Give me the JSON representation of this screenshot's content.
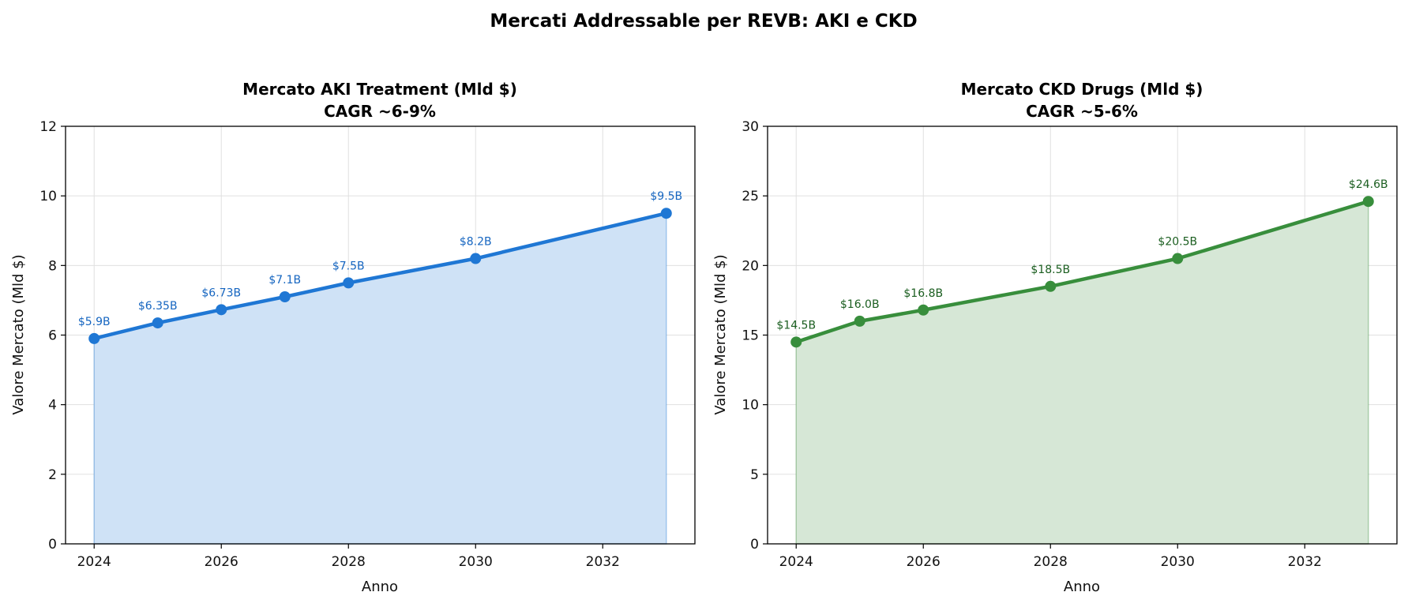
{
  "figure_title": "Mercati Addressable per REVB: AKI e CKD",
  "chart_data": [
    {
      "type": "area",
      "title": "Mercato AKI Treatment (Mld $)",
      "subtitle": "CAGR ~6-9%",
      "xlabel": "Anno",
      "ylabel": "Valore Mercato (Mld $)",
      "xlim": [
        2023.55,
        2033.45
      ],
      "ylim": [
        0,
        12
      ],
      "xticks": [
        2024,
        2026,
        2028,
        2030,
        2032
      ],
      "yticks": [
        0,
        2,
        4,
        6,
        8,
        10,
        12
      ],
      "grid": true,
      "color": "#1f77d4",
      "fill_color": "#cfe2f6",
      "label_color": "#1565c0",
      "x": [
        2024,
        2025,
        2026,
        2027,
        2028,
        2030,
        2033
      ],
      "y": [
        5.9,
        6.35,
        6.73,
        7.1,
        7.5,
        8.2,
        9.5
      ],
      "point_labels": [
        "$5.9B",
        "$6.35B",
        "$6.73B",
        "$7.1B",
        "$7.5B",
        "$8.2B",
        "$9.5B"
      ]
    },
    {
      "type": "area",
      "title": "Mercato CKD Drugs (Mld $)",
      "subtitle": "CAGR ~5-6%",
      "xlabel": "Anno",
      "ylabel": "Valore Mercato (Mld $)",
      "xlim": [
        2023.55,
        2033.45
      ],
      "ylim": [
        0,
        30
      ],
      "xticks": [
        2024,
        2026,
        2028,
        2030,
        2032
      ],
      "yticks": [
        0,
        5,
        10,
        15,
        20,
        25,
        30
      ],
      "grid": true,
      "color": "#388e3c",
      "fill_color": "#d6e7d6",
      "label_color": "#1b5e20",
      "x": [
        2024,
        2025,
        2026,
        2028,
        2030,
        2033
      ],
      "y": [
        14.5,
        16.0,
        16.8,
        18.5,
        20.5,
        24.6
      ],
      "point_labels": [
        "$14.5B",
        "$16.0B",
        "$16.8B",
        "$18.5B",
        "$20.5B",
        "$24.6B"
      ]
    }
  ]
}
